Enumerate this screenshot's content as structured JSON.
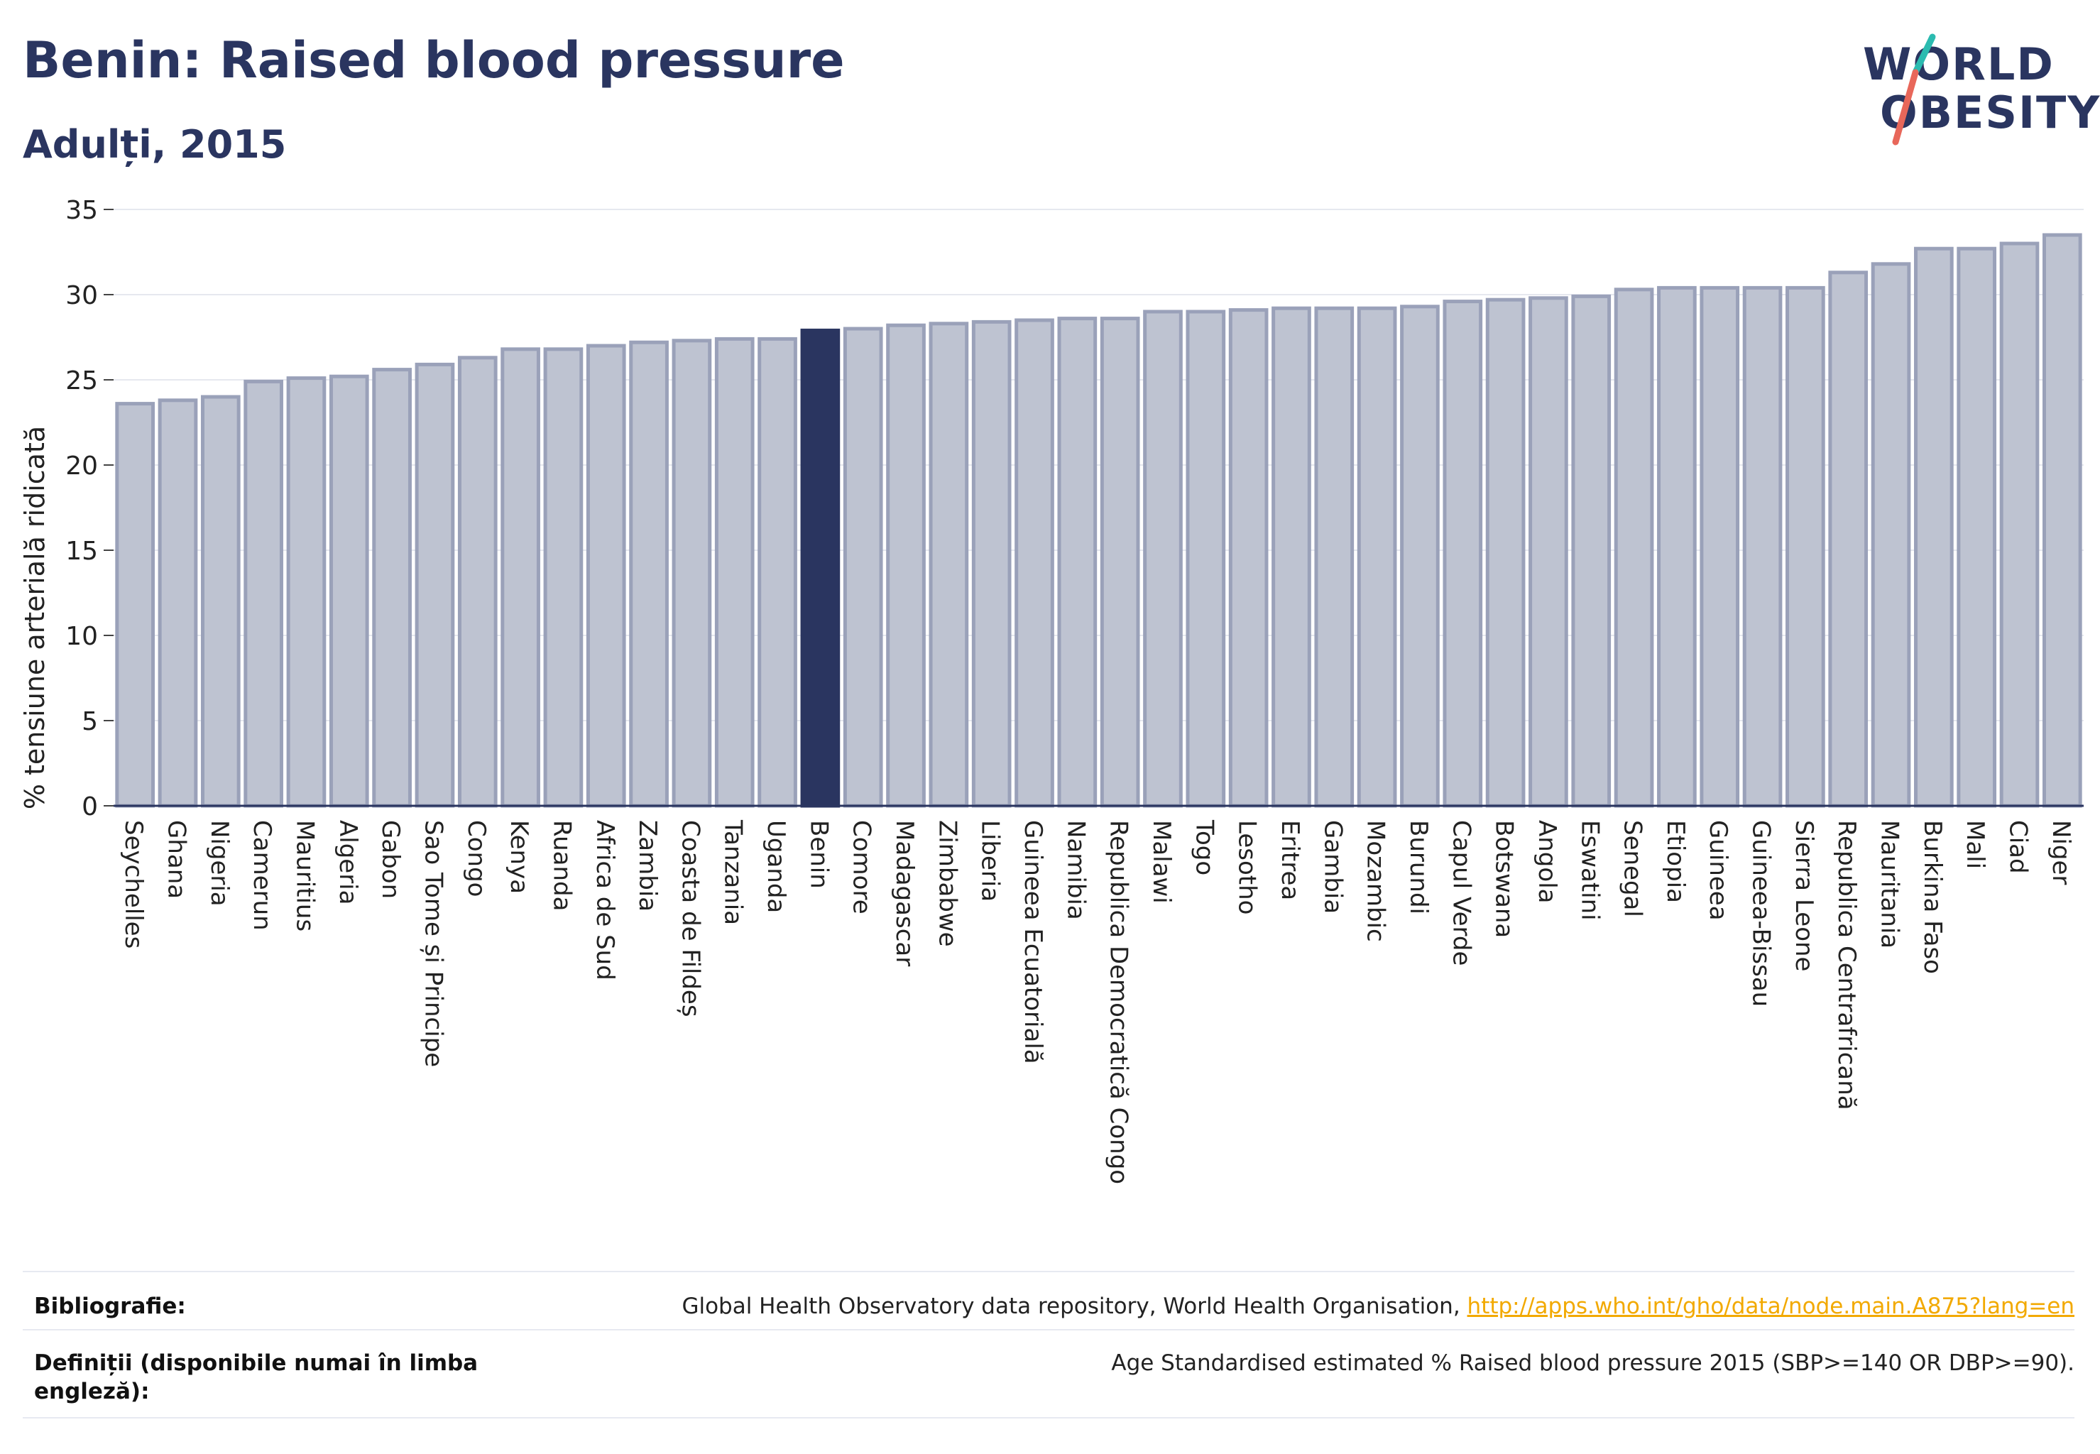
{
  "header": {
    "title": "Benin: Raised blood pressure",
    "subtitle": "Adulți, 2015"
  },
  "logo": {
    "line1": "WORLD",
    "line2": "OBESITY"
  },
  "colors": {
    "highlight": "#2a3560",
    "bar": "#bec3d1",
    "bar_border": "#9aa1b9",
    "grid": "#e6e8ef",
    "axis": "#2a3560",
    "logo_slash_top": "#2bbbb0",
    "logo_slash_bottom": "#e8675a",
    "link": "#f2a900"
  },
  "chart_data": {
    "type": "bar",
    "ylabel": "% tensiune arterială ridicată",
    "ylim": [
      0,
      35
    ],
    "yticks": [
      0,
      5,
      10,
      15,
      20,
      25,
      30,
      35
    ],
    "grid": true,
    "highlight": "Benin",
    "categories": [
      "Seychelles",
      "Ghana",
      "Nigeria",
      "Camerun",
      "Mauritius",
      "Algeria",
      "Gabon",
      "Sao Tome și Principe",
      "Congo",
      "Kenya",
      "Ruanda",
      "Africa de Sud",
      "Zambia",
      "Coasta de Fildeș",
      "Tanzania",
      "Uganda",
      "Benin",
      "Comore",
      "Madagascar",
      "Zimbabwe",
      "Liberia",
      "Guineea Ecuatorială",
      "Namibia",
      "Republica Democratică Congo",
      "Malawi",
      "Togo",
      "Lesotho",
      "Eritrea",
      "Gambia",
      "Mozambic",
      "Burundi",
      "Capul Verde",
      "Botswana",
      "Angola",
      "Eswatini",
      "Senegal",
      "Etiopia",
      "Guineea",
      "Guineea-Bissau",
      "Sierra Leone",
      "Republica Centrafricană",
      "Mauritania",
      "Burkina Faso",
      "Mali",
      "Ciad",
      "Niger"
    ],
    "values": [
      23.6,
      23.8,
      24.0,
      24.9,
      25.1,
      25.2,
      25.6,
      25.9,
      26.3,
      26.8,
      26.8,
      27.0,
      27.2,
      27.3,
      27.4,
      27.4,
      27.9,
      28.0,
      28.2,
      28.3,
      28.4,
      28.5,
      28.6,
      28.6,
      29.0,
      29.0,
      29.1,
      29.2,
      29.2,
      29.2,
      29.3,
      29.6,
      29.7,
      29.8,
      29.9,
      30.3,
      30.4,
      30.4,
      30.4,
      30.4,
      31.3,
      31.8,
      32.7,
      32.7,
      33.0,
      33.5
    ]
  },
  "footer": {
    "bibliography_label": "Bibliografie:",
    "bibliography_text": "Global Health Observatory data repository, World Health Organisation, ",
    "bibliography_link": "http://apps.who.int/gho/data/node.main.A875?lang=en",
    "definitions_label": "Definiții (disponibile numai în limba engleză):",
    "definitions_text": "Age Standardised estimated % Raised blood pressure 2015 (SBP>=140 OR DBP>=90)."
  }
}
